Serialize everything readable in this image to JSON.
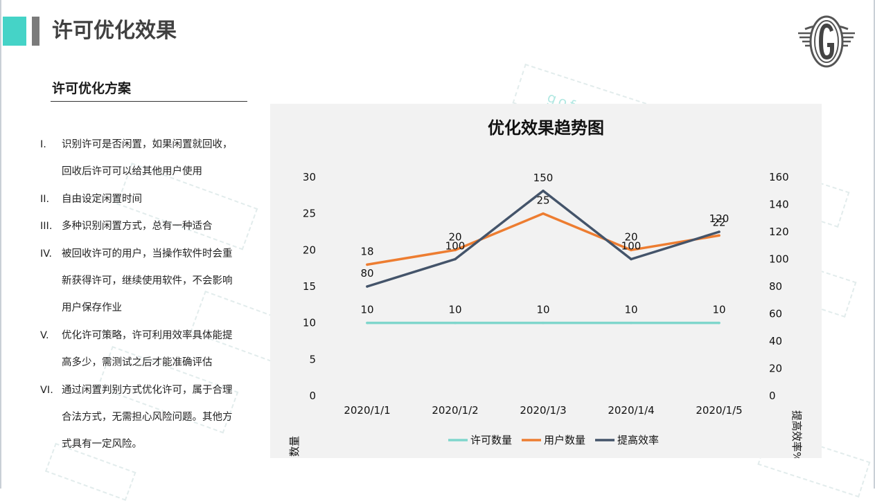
{
  "page_title": "许可优化效果",
  "watermark": "gofarlic.com",
  "section": {
    "title": "许可优化方案",
    "items": [
      {
        "num": "I.",
        "lines": [
          "识别许可是否闲置，如果闲置就回收，",
          "回收后许可可以给其他用户使用"
        ]
      },
      {
        "num": "II.",
        "lines": [
          "自由设定闲置时间"
        ]
      },
      {
        "num": "III.",
        "lines": [
          "多种识别闲置方式，总有一种适合"
        ]
      },
      {
        "num": "IV.",
        "lines": [
          "被回收许可的用户，当操作软件时会重",
          "新获得许可，继续使用软件，不会影响",
          "用户保存作业"
        ]
      },
      {
        "num": "V.",
        "lines": [
          "优化许可策略，许可利用效率具体能提",
          "高多少，需测试之后才能准确评估"
        ]
      },
      {
        "num": "VI.",
        "lines": [
          "通过闲置判别方式优化许可，属于合理",
          "合法方式，无需担心风险问题。其他方",
          "式具有一定风险。"
        ]
      }
    ]
  },
  "chart_data": {
    "type": "line",
    "title": "优化效果趋势图",
    "categories": [
      "2020/1/1",
      "2020/1/2",
      "2020/1/3",
      "2020/1/4",
      "2020/1/5"
    ],
    "ylabel": "数量",
    "y2label": "提高效率%",
    "ylim": [
      0,
      30
    ],
    "y2lim": [
      0,
      160
    ],
    "yticks": [
      0,
      5,
      10,
      15,
      20,
      25,
      30
    ],
    "y2ticks": [
      0,
      20,
      40,
      60,
      80,
      100,
      120,
      140,
      160
    ],
    "series": [
      {
        "name": "许可数量",
        "axis": "left",
        "color": "#7fd6cc",
        "values": [
          10,
          10,
          10,
          10,
          10
        ]
      },
      {
        "name": "用户数量",
        "axis": "left",
        "color": "#ed7d31",
        "values": [
          18,
          20,
          25,
          20,
          22
        ]
      },
      {
        "name": "提高效率",
        "axis": "right",
        "color": "#44546a",
        "values": [
          80,
          100,
          150,
          100,
          120
        ]
      }
    ],
    "legend_position": "bottom"
  }
}
